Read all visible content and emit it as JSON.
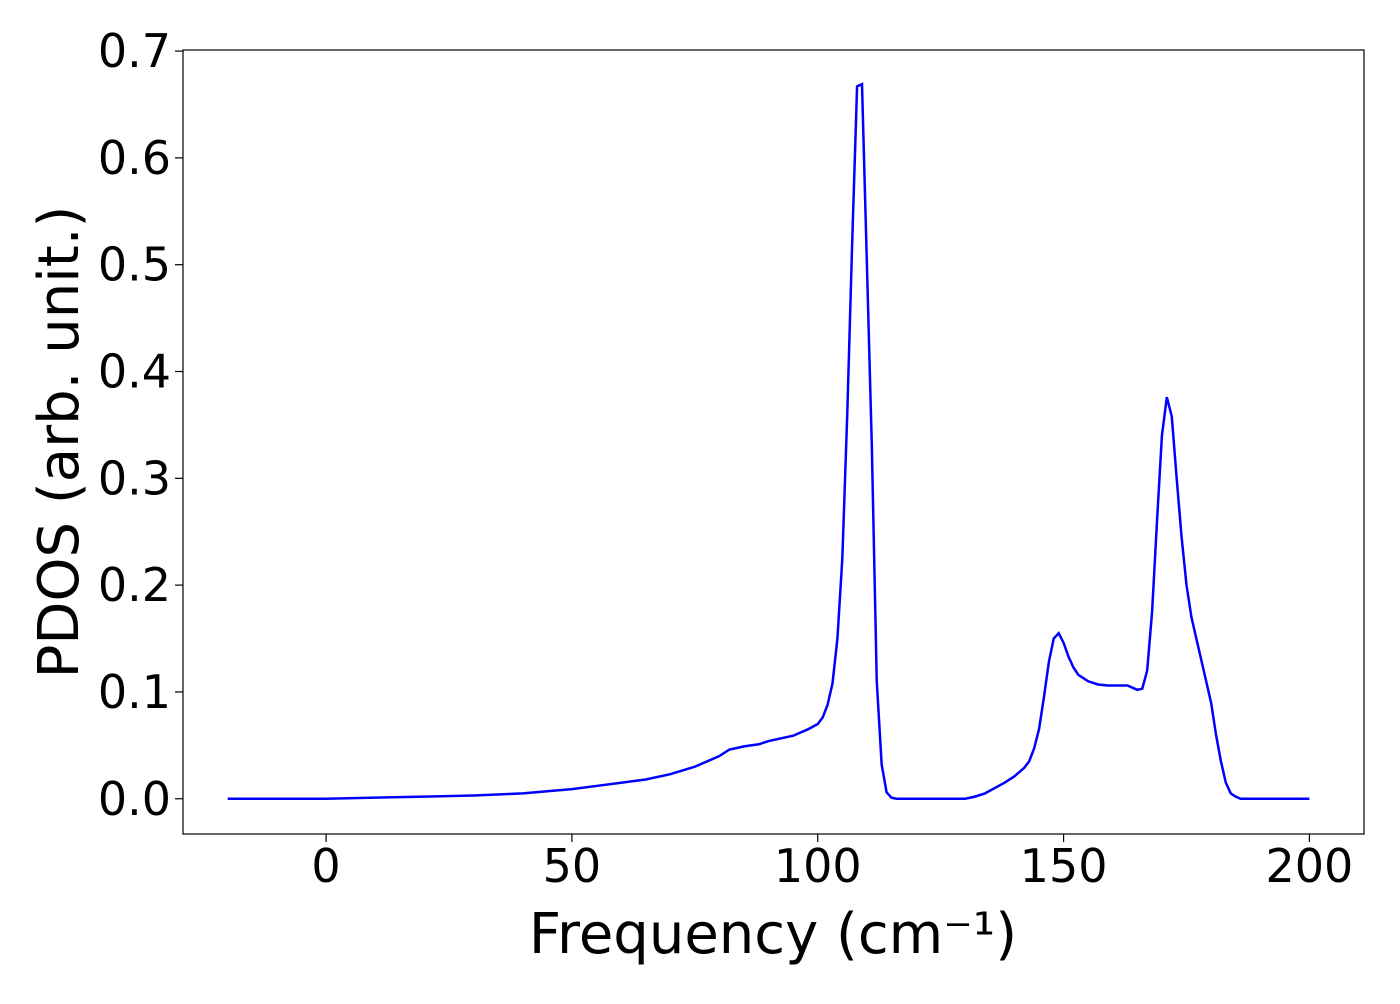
{
  "chart_data": {
    "type": "line",
    "xlabel": "Frequency (cm⁻¹)",
    "ylabel": "PDOS (arb. unit.)",
    "xlim": [
      -29.1,
      211.1
    ],
    "ylim": [
      -0.033,
      0.701
    ],
    "xticks": [
      0,
      50,
      100,
      150,
      200
    ],
    "yticks": [
      {
        "value": 0,
        "label": "0.0"
      },
      0.1,
      0.2,
      0.3,
      0.4,
      0.5,
      0.6,
      0.7
    ],
    "series": [
      {
        "color": "#0000ff",
        "x": [
          -20,
          0,
          10,
          20,
          30,
          40,
          50,
          55,
          60,
          65,
          70,
          75,
          80,
          82,
          85,
          88,
          90,
          95,
          98,
          100,
          101,
          102,
          103,
          104,
          105,
          106,
          107,
          108,
          109,
          110,
          111,
          112,
          113,
          114,
          115,
          116,
          130,
          132,
          134,
          136,
          138,
          140,
          142,
          143,
          144,
          145,
          146,
          147,
          148,
          149,
          150,
          151,
          152,
          153,
          155,
          157,
          159,
          161,
          163,
          164,
          165,
          166,
          167,
          168,
          169,
          170,
          171,
          172,
          173,
          174,
          175,
          176,
          178,
          180,
          181,
          182,
          183,
          184,
          185,
          186,
          200
        ],
        "values": [
          0,
          0,
          0.001,
          0.002,
          0.003,
          0.005,
          0.009,
          0.012,
          0.015,
          0.018,
          0.023,
          0.03,
          0.04,
          0.046,
          0.049,
          0.051,
          0.054,
          0.059,
          0.065,
          0.07,
          0.076,
          0.088,
          0.108,
          0.15,
          0.225,
          0.36,
          0.52,
          0.667,
          0.669,
          0.5,
          0.33,
          0.11,
          0.032,
          0.006,
          0.001,
          0,
          0,
          0.002,
          0.005,
          0.01,
          0.015,
          0.021,
          0.029,
          0.035,
          0.047,
          0.065,
          0.095,
          0.128,
          0.15,
          0.155,
          0.146,
          0.133,
          0.123,
          0.116,
          0.11,
          0.107,
          0.106,
          0.106,
          0.106,
          0.104,
          0.102,
          0.103,
          0.12,
          0.175,
          0.26,
          0.34,
          0.376,
          0.358,
          0.3,
          0.245,
          0.2,
          0.17,
          0.13,
          0.09,
          0.06,
          0.035,
          0.015,
          0.005,
          0.002,
          0,
          0
        ]
      }
    ]
  }
}
